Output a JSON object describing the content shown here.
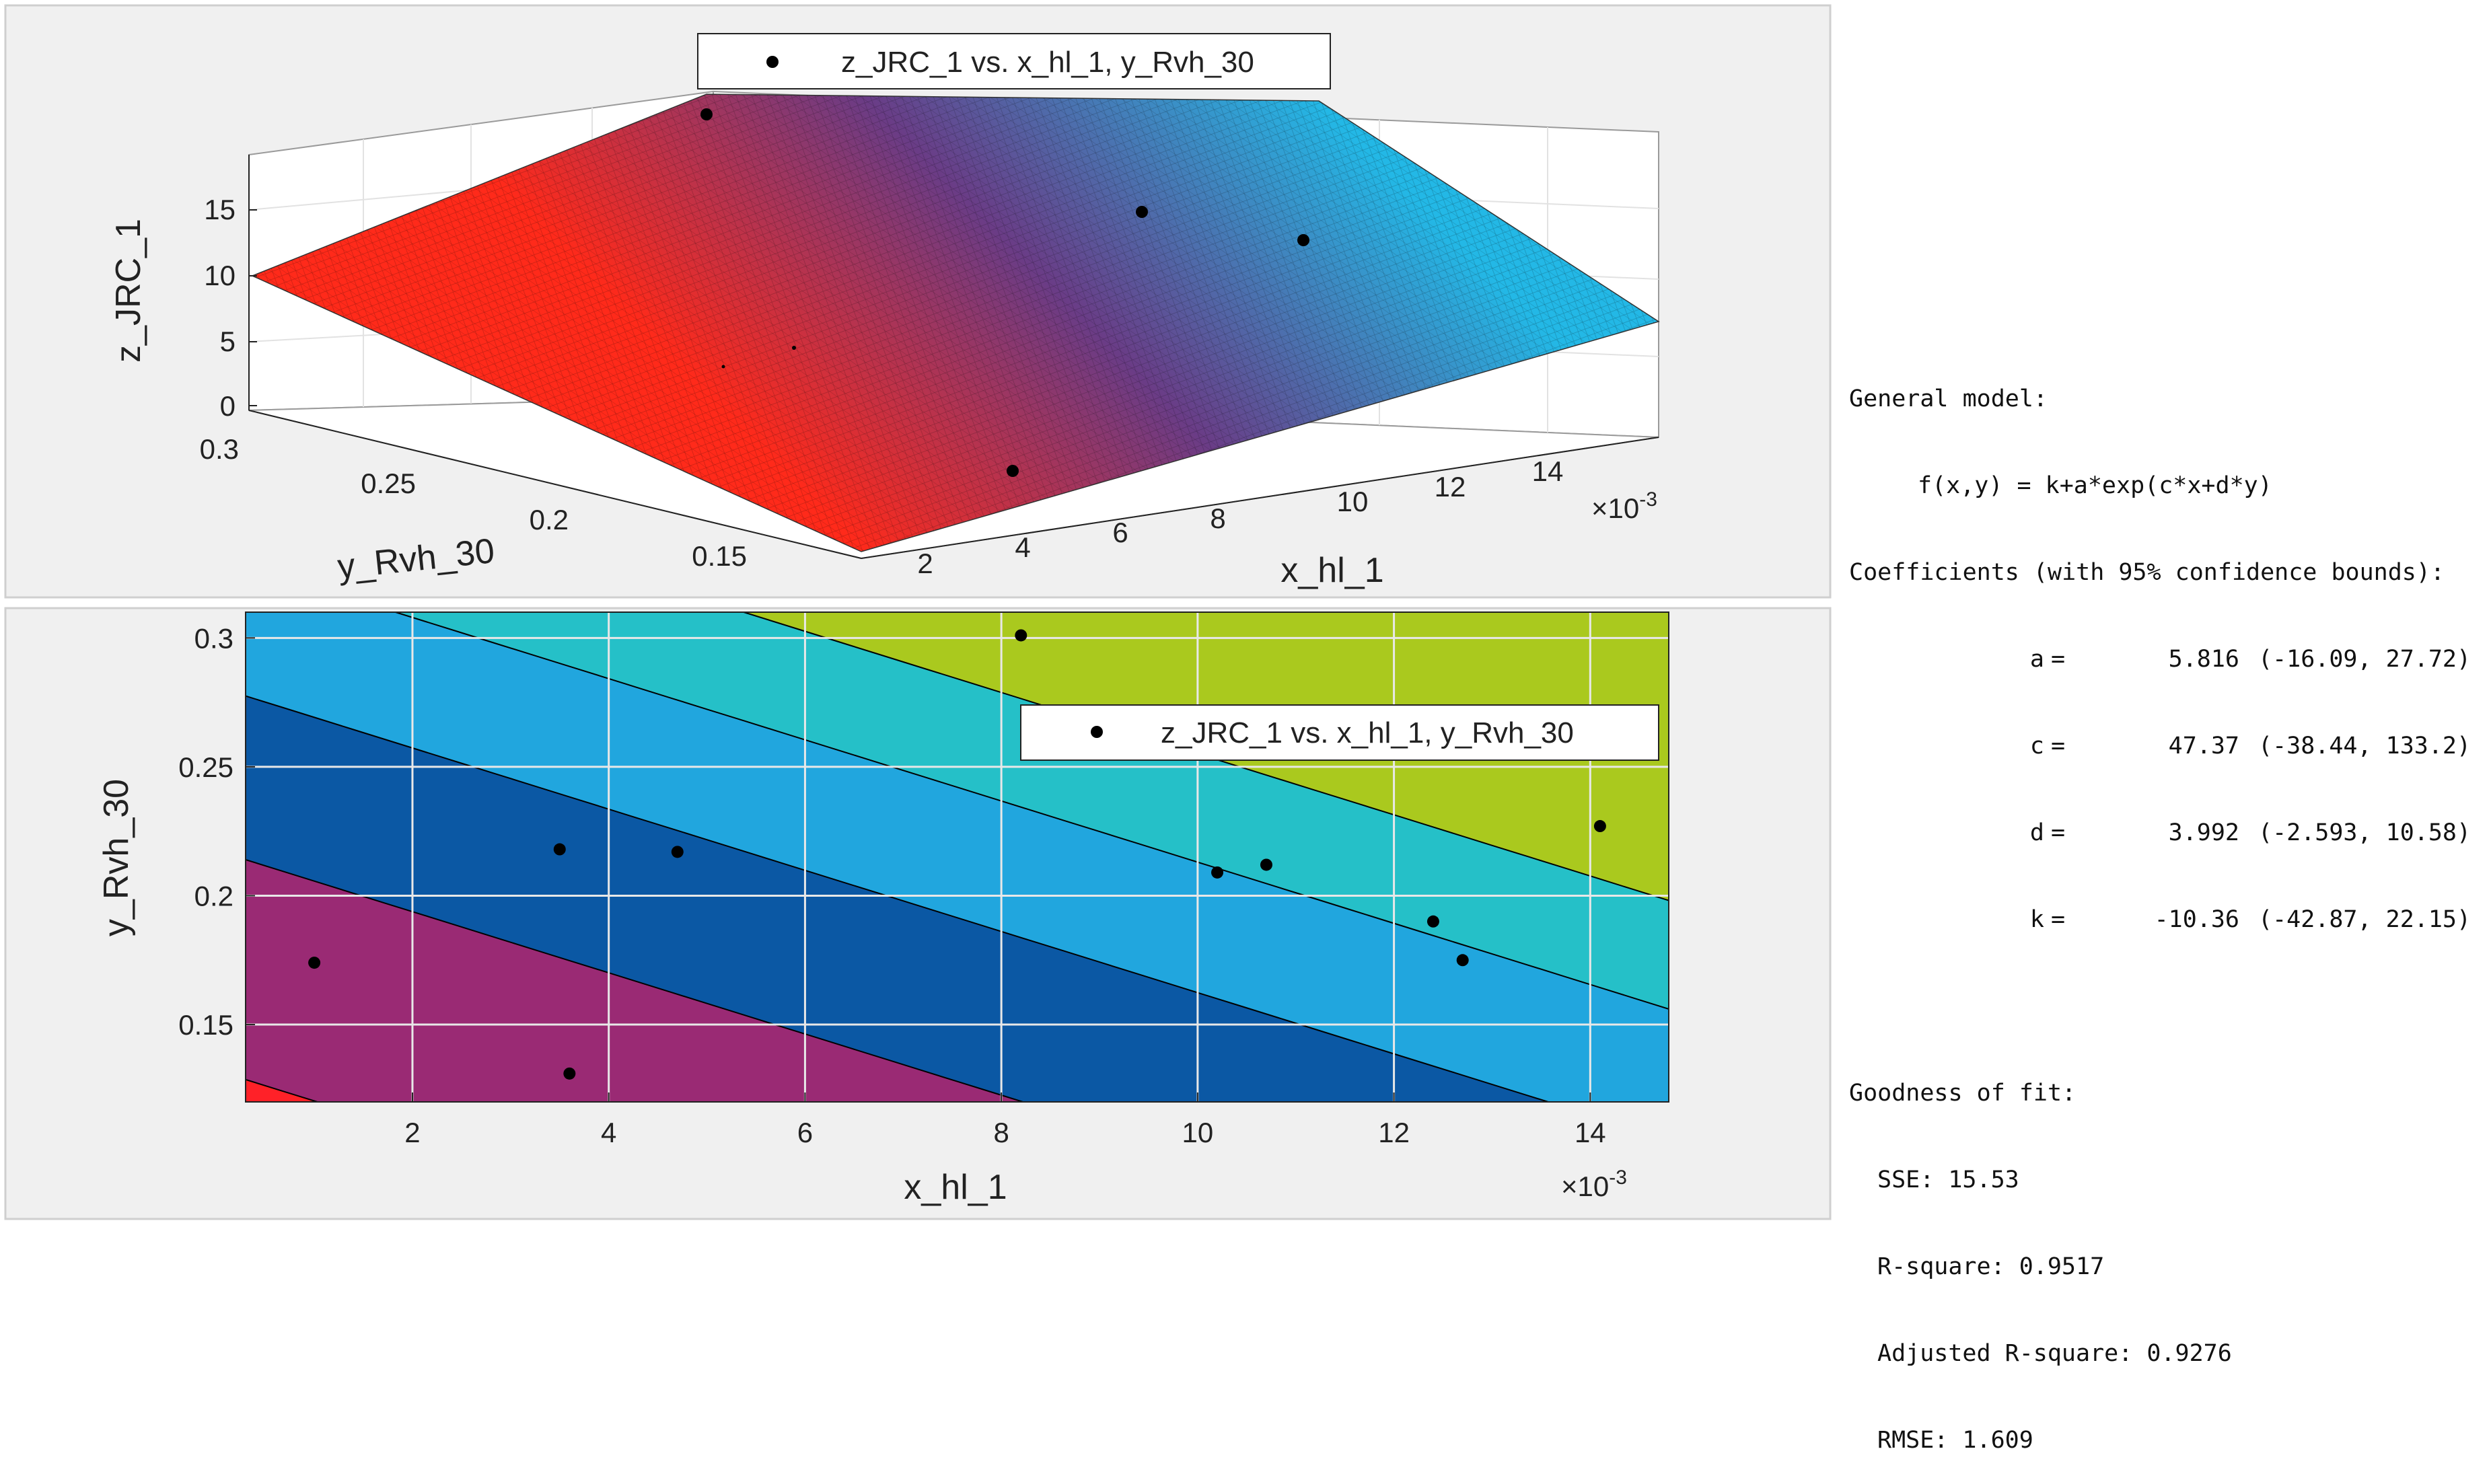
{
  "colors": {
    "surface_low": "#ff2a1a",
    "surface_mid": "#6a3c86",
    "surface_high": "#23b8e6",
    "contour_levels": [
      "#ff2128",
      "#9a2a74",
      "#0b58a4",
      "#21a6de",
      "#25c0c8",
      "#aac91e"
    ],
    "grid": "#e8e8e8",
    "panel": "#f0f0f0"
  },
  "icons": {
    "legend_marker": "dot-icon"
  },
  "chart_data": [
    {
      "type": "surface",
      "legend": "z_JRC_1 vs. x_hl_1, y_Rvh_30",
      "xlabel": "x_hl_1",
      "ylabel": "y_Rvh_30",
      "zlabel": "z_JRC_1",
      "x_exponent": "×10",
      "x_exponent_power": "-3",
      "x_ticks": [
        "2",
        "4",
        "6",
        "8",
        "10",
        "12",
        "14"
      ],
      "y_ticks": [
        "0.15",
        "0.2",
        "0.25",
        "0.3"
      ],
      "z_ticks": [
        "0",
        "5",
        "10",
        "15"
      ],
      "xlim": [
        0.3,
        14.8
      ],
      "ylim": [
        0.12,
        0.31
      ],
      "zlim": [
        0,
        20
      ],
      "points": [
        {
          "x": 1.0,
          "y": 0.174,
          "z": 0.6
        },
        {
          "x": 3.5,
          "y": 0.218,
          "z": 4.1
        },
        {
          "x": 4.7,
          "y": 0.217,
          "z": 4.9
        },
        {
          "x": 8.2,
          "y": 0.301,
          "z": 20.2
        },
        {
          "x": 10.2,
          "y": 0.209,
          "z": 5.5
        },
        {
          "x": 10.7,
          "y": 0.212,
          "z": 6.6
        },
        {
          "x": 12.4,
          "y": 0.19,
          "z": 16.0
        },
        {
          "x": 12.7,
          "y": 0.175,
          "z": 14.6
        },
        {
          "x": 14.1,
          "y": 0.227,
          "z": 11.0
        },
        {
          "x": 3.6,
          "y": 0.131,
          "z": -0.3
        }
      ]
    },
    {
      "type": "contour",
      "legend": "z_JRC_1 vs. x_hl_1, y_Rvh_30",
      "xlabel": "x_hl_1",
      "ylabel": "y_Rvh_30",
      "x_exponent": "×10",
      "x_exponent_power": "-3",
      "x_ticks": [
        2,
        4,
        6,
        8,
        10,
        12,
        14
      ],
      "y_ticks": [
        0.15,
        0.2,
        0.25,
        0.3
      ],
      "xlim": [
        0.3,
        14.8
      ],
      "ylim": [
        0.12,
        0.31
      ],
      "levels": [
        -0.5,
        3.5,
        7.5,
        11.5,
        15.5
      ],
      "points": [
        {
          "x": 1.0,
          "y": 0.174
        },
        {
          "x": 3.5,
          "y": 0.218
        },
        {
          "x": 3.6,
          "y": 0.131
        },
        {
          "x": 4.7,
          "y": 0.217
        },
        {
          "x": 8.2,
          "y": 0.301
        },
        {
          "x": 10.2,
          "y": 0.209
        },
        {
          "x": 10.7,
          "y": 0.212
        },
        {
          "x": 12.4,
          "y": 0.19
        },
        {
          "x": 12.7,
          "y": 0.175
        },
        {
          "x": 14.1,
          "y": 0.227
        }
      ]
    }
  ],
  "fit_results": {
    "general_model_label": "General model:",
    "formula": "f(x,y) = k+a*exp(c*x+d*y)",
    "coefficients_label": "Coefficients (with 95% confidence bounds):",
    "coefficients": [
      {
        "name": "a",
        "value": "5.816",
        "bounds": "(-16.09, 27.72)"
      },
      {
        "name": "c",
        "value": "47.37",
        "bounds": "(-38.44, 133.2)"
      },
      {
        "name": "d",
        "value": "3.992",
        "bounds": "(-2.593, 10.58)"
      },
      {
        "name": "k",
        "value": "-10.36",
        "bounds": "(-42.87, 22.15)"
      }
    ],
    "goodness_label": "Goodness of fit:",
    "sse": "SSE: 15.53",
    "rsquare": "R-square: 0.9517",
    "adj_rsquare": "Adjusted R-square: 0.9276",
    "rmse": "RMSE: 1.609"
  }
}
